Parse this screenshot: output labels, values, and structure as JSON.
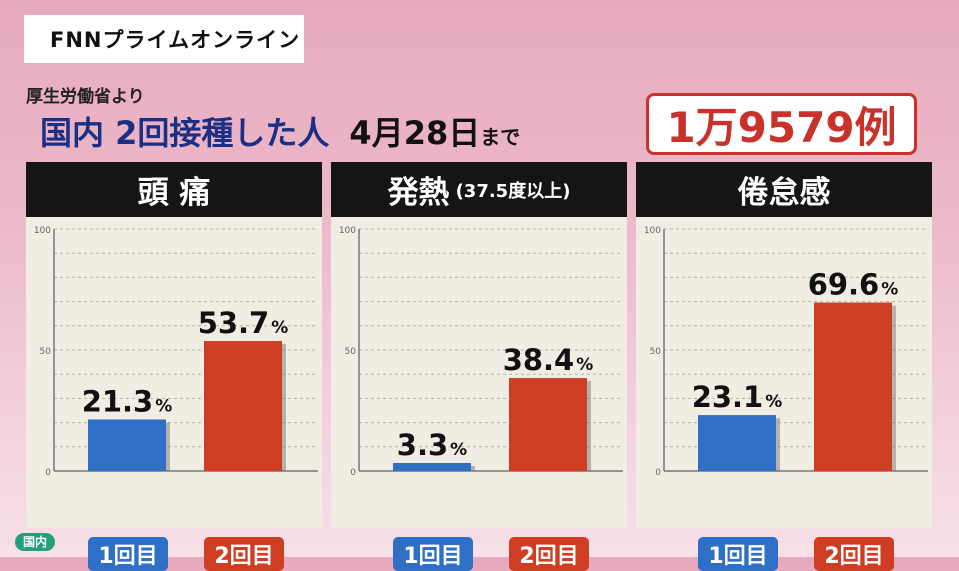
{
  "header": {
    "logo": "FNNプライムオンライン",
    "source": "厚生労働省より",
    "headline": "国内 2回接種した人",
    "date": "4月28日",
    "date_suffix": "まで",
    "total": "1万9579例"
  },
  "tag": "国内",
  "colors": {
    "dose1": "#2f6fc6",
    "dose2": "#cf3e22",
    "title_bg": "#151515",
    "panel_bg": "#f1ede2",
    "accent": "#c8322a"
  },
  "chart_data": [
    {
      "type": "bar",
      "title": "頭 痛",
      "subtitle": "",
      "categories": [
        "1回目",
        "2回目"
      ],
      "values": [
        21.3,
        53.7
      ],
      "value_labels": [
        "21.3",
        "53.7"
      ],
      "unit": "%",
      "ylim": [
        0,
        100
      ],
      "yticks": [
        0,
        50,
        100
      ],
      "grid": true
    },
    {
      "type": "bar",
      "title": "発熱",
      "subtitle": "(37.5度以上)",
      "categories": [
        "1回目",
        "2回目"
      ],
      "values": [
        3.3,
        38.4
      ],
      "value_labels": [
        "3.3",
        "38.4"
      ],
      "unit": "%",
      "ylim": [
        0,
        100
      ],
      "yticks": [
        0,
        50,
        100
      ],
      "grid": true
    },
    {
      "type": "bar",
      "title": "倦怠感",
      "subtitle": "",
      "categories": [
        "1回目",
        "2回目"
      ],
      "values": [
        23.1,
        69.6
      ],
      "value_labels": [
        "23.1",
        "69.6"
      ],
      "unit": "%",
      "ylim": [
        0,
        100
      ],
      "yticks": [
        0,
        50,
        100
      ],
      "grid": true
    }
  ]
}
